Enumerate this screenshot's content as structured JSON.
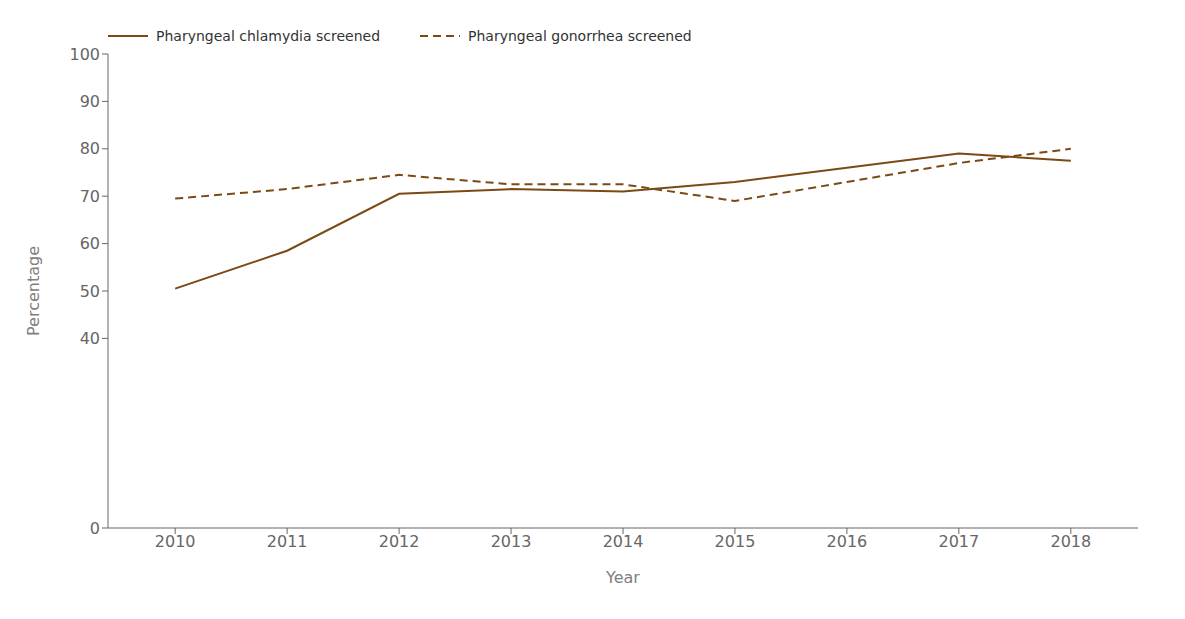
{
  "chart_data": {
    "type": "line",
    "x": [
      2010,
      2011,
      2012,
      2013,
      2014,
      2015,
      2016,
      2017,
      2018
    ],
    "series": [
      {
        "name": "Pharyngeal chlamydia screened",
        "color": "#7B4A14",
        "line_style": "solid",
        "values": [
          50.5,
          58.5,
          70.5,
          71.5,
          71.0,
          73.0,
          76.0,
          79.0,
          77.5
        ]
      },
      {
        "name": "Pharyngeal gonorrhea screened",
        "color": "#7B4A14",
        "line_style": "dashed",
        "values": [
          69.5,
          71.5,
          74.5,
          72.5,
          72.5,
          69.0,
          73.0,
          77.0,
          80.0
        ]
      }
    ],
    "xlabel": "Year",
    "ylabel": "Percentage",
    "xlim": [
      2009.4,
      2018.6
    ],
    "xticks": [
      2010,
      2011,
      2012,
      2013,
      2014,
      2015,
      2016,
      2017,
      2018
    ],
    "ylim": [
      0,
      100
    ],
    "yticks": [
      0,
      40,
      50,
      60,
      70,
      80,
      90,
      100
    ],
    "grid": false,
    "legend": "upper left"
  }
}
